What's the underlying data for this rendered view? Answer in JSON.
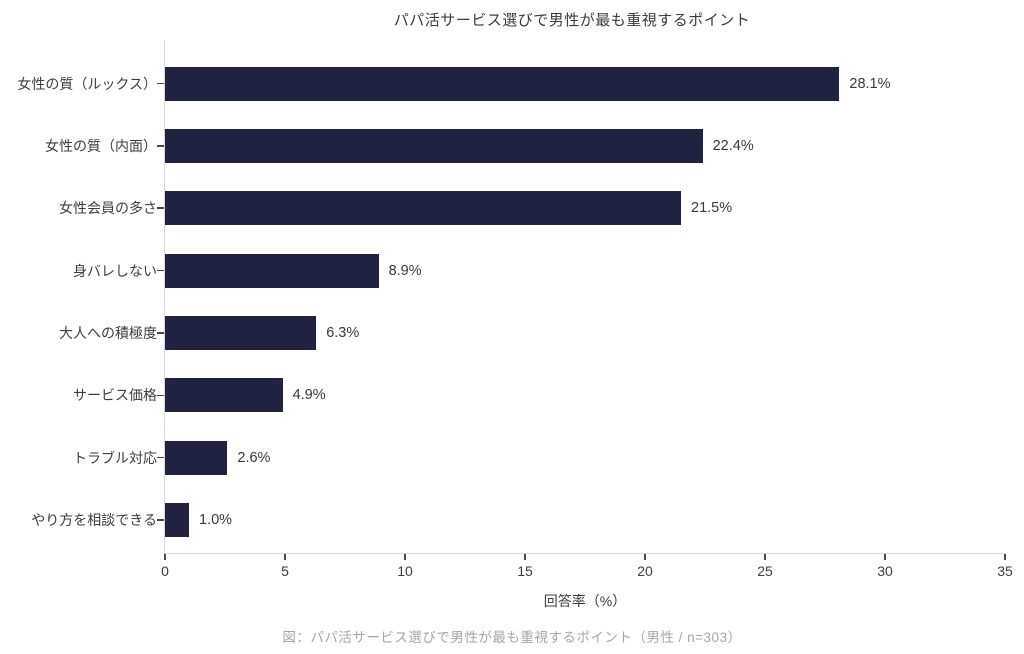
{
  "title": "パパ活サービス選びで男性が最も重視するポイント",
  "caption": "図：パパ活サービス選びで男性が最も重視するポイント（男性 / n=303）",
  "colors": {
    "bar": "#1f2240",
    "axis_line": "#d8d8d8",
    "tick_mark": "#4a4a4a",
    "text": "#3d3d3d",
    "caption_text": "#a6a6a6",
    "background": "#ffffff"
  },
  "chart_data": {
    "type": "bar",
    "orientation": "horizontal",
    "title": "パパ活サービス選びで男性が最も重視するポイント",
    "categories": [
      "女性の質（ルックス）",
      "女性の質（内面）",
      "女性会員の多さ",
      "身バレしない",
      "大人への積極度",
      "サービス価格",
      "トラブル対応",
      "やり方を相談できる"
    ],
    "values": [
      28.1,
      22.4,
      21.5,
      8.9,
      6.3,
      4.9,
      2.6,
      1.0
    ],
    "value_labels": [
      "28.1%",
      "22.4%",
      "21.5%",
      "8.9%",
      "6.3%",
      "4.9%",
      "2.6%",
      "1.0%"
    ],
    "xlabel": "回答率（%）",
    "xlim": [
      0,
      35
    ],
    "xticks": [
      0,
      5,
      10,
      15,
      20,
      25,
      30,
      35
    ],
    "xtick_labels": [
      "0",
      "5",
      "10",
      "15",
      "20",
      "25",
      "30",
      "35"
    ],
    "grid": false,
    "legend": "none",
    "bar_color": "#1f2240",
    "caption": "図：パパ活サービス選びで男性が最も重視するポイント（男性 / n=303）"
  }
}
